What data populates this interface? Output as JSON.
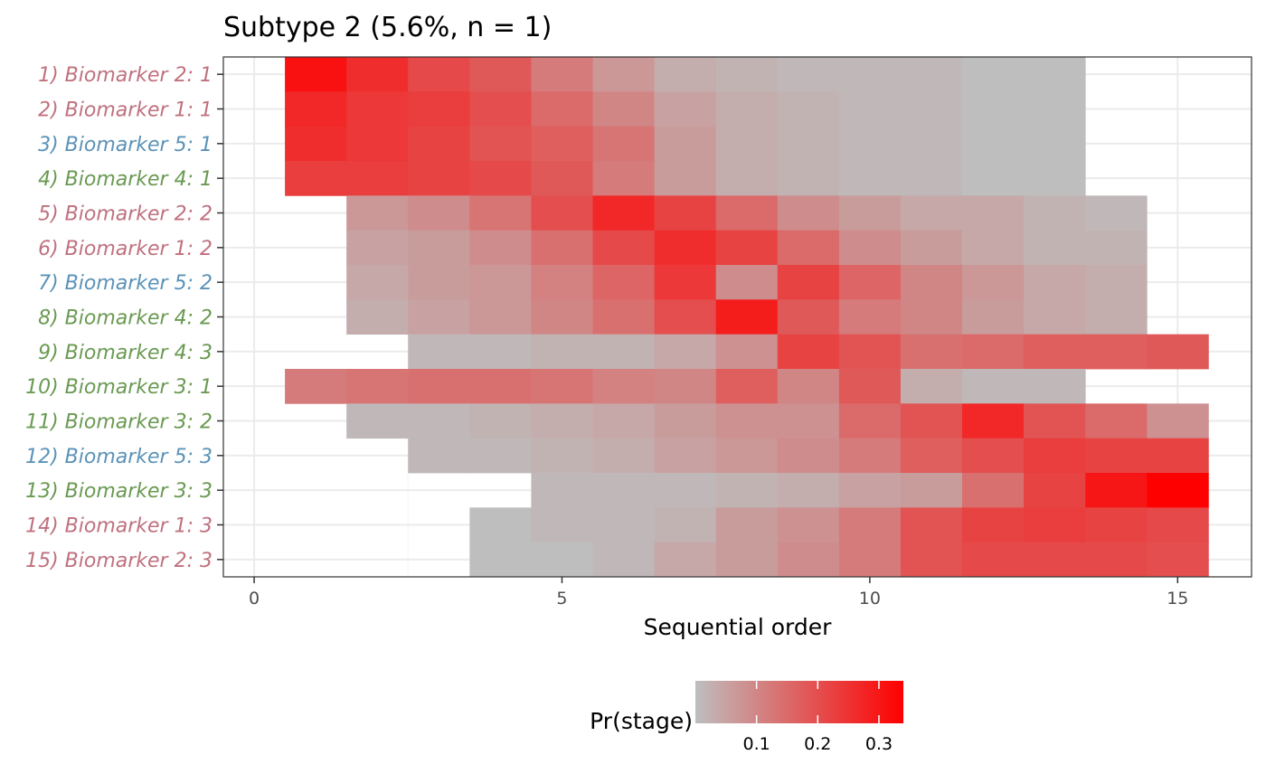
{
  "chart_data": {
    "type": "heatmap",
    "title": "Subtype 2 (5.6%, n = 1)",
    "xlabel": "Sequential order",
    "xlim": [
      -0.5,
      16.2
    ],
    "xticks": [
      0,
      5,
      10,
      15
    ],
    "legend": {
      "title": "Pr(stage)",
      "ticks": [
        0.1,
        0.2,
        0.3
      ],
      "range": [
        0,
        0.34
      ],
      "low_color": "#bebebe",
      "high_color": "#ff0000",
      "placement": "bottom"
    },
    "group_colors": {
      "pink": "#c0717e",
      "blue": "#5b93b8",
      "green": "#6a9a52"
    },
    "rows": [
      {
        "label": "1) Biomarker 2: 1",
        "group": "pink",
        "start": 1,
        "values": [
          0.31,
          0.26,
          0.21,
          0.18,
          0.12,
          0.07,
          0.03,
          0.02,
          0.01,
          0.01,
          0.01,
          0.0,
          0.0
        ]
      },
      {
        "label": "2) Biomarker 1: 1",
        "group": "pink",
        "start": 1,
        "values": [
          0.27,
          0.24,
          0.23,
          0.2,
          0.15,
          0.1,
          0.05,
          0.03,
          0.02,
          0.01,
          0.01,
          0.0,
          0.0
        ]
      },
      {
        "label": "3) Biomarker 5: 1",
        "group": "blue",
        "start": 1,
        "values": [
          0.26,
          0.24,
          0.22,
          0.19,
          0.17,
          0.13,
          0.06,
          0.03,
          0.02,
          0.01,
          0.01,
          0.0,
          0.0
        ]
      },
      {
        "label": "4) Biomarker 4: 1",
        "group": "green",
        "start": 1,
        "values": [
          0.23,
          0.23,
          0.22,
          0.21,
          0.18,
          0.12,
          0.06,
          0.03,
          0.02,
          0.01,
          0.01,
          0.0,
          0.0
        ]
      },
      {
        "label": "5) Biomarker 2: 2",
        "group": "pink",
        "start": 2,
        "values": [
          0.07,
          0.09,
          0.13,
          0.2,
          0.27,
          0.22,
          0.15,
          0.09,
          0.06,
          0.04,
          0.04,
          0.02,
          0.01
        ]
      },
      {
        "label": "6) Biomarker 1: 2",
        "group": "pink",
        "start": 2,
        "values": [
          0.05,
          0.06,
          0.09,
          0.14,
          0.21,
          0.26,
          0.22,
          0.15,
          0.09,
          0.06,
          0.04,
          0.02,
          0.02
        ]
      },
      {
        "label": "7) Biomarker 5: 2",
        "group": "blue",
        "start": 2,
        "values": [
          0.04,
          0.06,
          0.07,
          0.11,
          0.16,
          0.24,
          0.09,
          0.22,
          0.16,
          0.1,
          0.07,
          0.04,
          0.03
        ]
      },
      {
        "label": "8) Biomarker 4: 2",
        "group": "green",
        "start": 2,
        "values": [
          0.03,
          0.05,
          0.07,
          0.1,
          0.14,
          0.2,
          0.29,
          0.18,
          0.12,
          0.1,
          0.06,
          0.04,
          0.03
        ]
      },
      {
        "label": "9) Biomarker 4: 3",
        "group": "green",
        "start": 3,
        "values": [
          0.01,
          0.01,
          0.02,
          0.02,
          0.04,
          0.08,
          0.22,
          0.19,
          0.14,
          0.15,
          0.17,
          0.17,
          0.18
        ]
      },
      {
        "label": "10) Biomarker 3: 1",
        "group": "green",
        "start": 1,
        "values": [
          0.12,
          0.13,
          0.14,
          0.14,
          0.13,
          0.11,
          0.1,
          0.17,
          0.1,
          0.18,
          0.03,
          0.01,
          0.01
        ]
      },
      {
        "label": "11) Biomarker 3: 2",
        "group": "green",
        "start": 2,
        "values": [
          0.01,
          0.01,
          0.02,
          0.03,
          0.04,
          0.06,
          0.08,
          0.08,
          0.15,
          0.19,
          0.27,
          0.19,
          0.15,
          0.08
        ]
      },
      {
        "label": "12) Biomarker 5: 3",
        "group": "blue",
        "start": 3,
        "values": [
          0.01,
          0.01,
          0.02,
          0.03,
          0.05,
          0.07,
          0.09,
          0.12,
          0.17,
          0.2,
          0.23,
          0.22,
          0.22
        ]
      },
      {
        "label": "13) Biomarker 3: 3",
        "group": "green",
        "start": 5,
        "values": [
          0.01,
          0.01,
          0.01,
          0.02,
          0.03,
          0.05,
          0.06,
          0.14,
          0.22,
          0.3,
          0.34
        ]
      },
      {
        "label": "14) Biomarker 1: 3",
        "group": "pink",
        "start": 4,
        "values": [
          0.0,
          0.01,
          0.01,
          0.02,
          0.06,
          0.08,
          0.12,
          0.19,
          0.22,
          0.23,
          0.22,
          0.21
        ]
      },
      {
        "label": "15) Biomarker 2: 3",
        "group": "pink",
        "start": 4,
        "values": [
          0.0,
          0.0,
          0.01,
          0.04,
          0.06,
          0.09,
          0.12,
          0.19,
          0.21,
          0.21,
          0.21,
          0.2
        ]
      }
    ]
  }
}
